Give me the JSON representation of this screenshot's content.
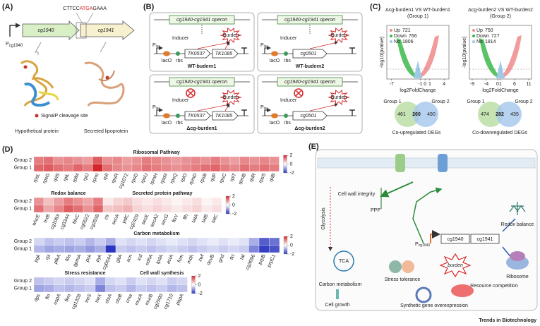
{
  "panel_a": {
    "label": "(A)",
    "sequence": {
      "before": "CTTCC",
      "highlight": "ATGA",
      "after": "GAAA"
    },
    "genes": [
      "cg1940",
      "cg1941"
    ],
    "promoter": {
      "base": "P",
      "sub": "cg1940"
    },
    "legend": "SignalP cleavage site",
    "proteins": [
      "Hypothetical protein",
      "Secreted lipoprotein"
    ]
  },
  "panel_b": {
    "label": "(B)",
    "operon": "cg1940-cg1941 operon",
    "inducer": "Inducer",
    "burden": "Burden",
    "promoter": {
      "base": "P",
      "sub": "tac"
    },
    "lacO": "lacO",
    "rbs": "rbs",
    "strains": [
      {
        "name": "WT-budern1",
        "genes": [
          "TK0537",
          "TK1085"
        ],
        "knockout": false
      },
      {
        "name": "WT-budern2",
        "genes": [
          "cg0501"
        ],
        "knockout": false
      },
      {
        "name": "Δcg-burden1",
        "genes": [
          "TK0537",
          "TK1085"
        ],
        "knockout": true
      },
      {
        "name": "Δcg-burden2",
        "genes": [
          "cg0501"
        ],
        "knockout": true
      }
    ]
  },
  "panel_c": {
    "label": "(C)",
    "x_label": "log2FoldChange",
    "y_label": "-log10(pvalue)",
    "volcanoes": [
      {
        "title": "Δcg-burden1 VS WT-burden1",
        "group": "(Group 1)",
        "xlim": [
          -8,
          5
        ],
        "xticks": [
          -7,
          -1,
          0,
          1,
          4
        ],
        "legend": [
          {
            "name": "Up",
            "count": 721,
            "color": "#f08a8a"
          },
          {
            "name": "Down",
            "count": 766,
            "color": "#3cb94a"
          },
          {
            "name": "No",
            "count": 1806,
            "color": "#9fc9e8"
          }
        ]
      },
      {
        "title": "Δcg-burden2 VS WT-burden2",
        "group": "(Group 2)",
        "xlim": [
          -10,
          12
        ],
        "xticks": [
          -9,
          -4,
          0,
          1,
          6,
          11
        ],
        "legend": [
          {
            "name": "Up",
            "count": 750,
            "color": "#f08a8a"
          },
          {
            "name": "Down",
            "count": 727,
            "color": "#3cb94a"
          },
          {
            "name": "No",
            "count": 1814,
            "color": "#9fc9e8"
          }
        ]
      }
    ],
    "venns": [
      {
        "left": "Group 1",
        "right": "Group 2",
        "values": [
          461,
          260,
          490
        ],
        "caption": "Co-upregulated DEGs",
        "overlap_color": "#d62728"
      },
      {
        "left": "Group 1",
        "right": "Group 2",
        "values": [
          474,
          282,
          435
        ],
        "caption": "Co-downregulated DEGs",
        "overlap_color": "#1f3fbf"
      }
    ]
  },
  "panel_d": {
    "label": "(D)",
    "rows": [
      "Group 2",
      "Group 1"
    ],
    "clim": [
      -2,
      2
    ],
    "colorbar_ticks": [
      2,
      0,
      -2
    ],
    "colormap": [
      "#2a35c0",
      "#ffffff",
      "#d3252a"
    ],
    "blocks": [
      {
        "sections": [
          {
            "title": "Ribosomal Pathway",
            "genes": [
              "rpsL",
              "rpsG",
              "rplS",
              "rplL",
              "rplM",
              "rplJ",
              "rpmI",
              "rplI",
              "rpsR",
              "cg1072",
              "rpsD",
              "rpsU",
              "rpmH",
              "rpsM",
              "rpsQ",
              "rplO",
              "rpmD",
              "rpsB",
              "rplP",
              "rpsC",
              "rplT",
              "rpmB",
              "rplR",
              "rpsS",
              "rplB"
            ],
            "values": [
              [
                1.2,
                1.3,
                1.0,
                1.1,
                1.0,
                0.9,
                1.5,
                1.0,
                1.1,
                0.9,
                1.0,
                1.2,
                1.1,
                1.0,
                0.9,
                1.0,
                1.1,
                1.0,
                1.2,
                1.0,
                0.9,
                1.1,
                1.0,
                1.1,
                1.0
              ],
              [
                1.4,
                1.5,
                1.3,
                1.2,
                1.4,
                1.2,
                2.0,
                1.3,
                1.1,
                1.0,
                1.1,
                1.3,
                1.2,
                1.1,
                1.0,
                1.1,
                1.2,
                1.3,
                1.4,
                1.2,
                1.1,
                1.3,
                1.2,
                1.3,
                1.2
              ]
            ]
          }
        ]
      },
      {
        "sections": [
          {
            "title": "Redox balance",
            "genes": [
              "whcE",
              "trxB",
              "cg1083",
              "cg3344",
              "fdxC",
              "cg0622",
              "cg2838"
            ],
            "values": [
              [
                1.0,
                0.6,
                0.9,
                1.2,
                1.0,
                0.8,
                1.2
              ],
              [
                1.3,
                0.8,
                1.1,
                1.5,
                1.3,
                1.0,
                1.4
              ]
            ]
          },
          {
            "title": "Secreted protein pathway",
            "genes": [
              "ctr",
              "secA",
              "yidC",
              "cg2429",
              "secE",
              "secA2",
              "secG",
              "ftsY",
              "ffh",
              "tatA",
              "tatB",
              "tatC"
            ],
            "values": [
              [
                0.2,
                0.4,
                0.5,
                0.3,
                0.2,
                0.3,
                0.2,
                0.1,
                0.2,
                0.3,
                0.1,
                0.2
              ],
              [
                0.5,
                0.6,
                0.7,
                0.4,
                0.3,
                0.4,
                0.3,
                0.2,
                0.3,
                0.4,
                0.2,
                0.3
              ]
            ]
          }
        ]
      },
      {
        "sections": [
          {
            "title": "Carbon metabolism",
            "genes": [
              "pgk",
              "rpi",
              "pfkA",
              "fda",
              "gpmA",
              "pck",
              "pyk",
              "cg0644",
              "gltA",
              "acn",
              "icd",
              "odhA",
              "lpdA",
              "actA",
              "fum",
              "mdh",
              "zwf",
              "devB",
              "gnd",
              "tkt",
              "tal",
              "cg3096",
              "prpB",
              "prpC1"
            ],
            "values": [
              [
                -0.4,
                -0.6,
                -0.5,
                -0.6,
                -0.5,
                -0.7,
                -0.5,
                -0.8,
                -0.3,
                -0.4,
                -0.3,
                -0.4,
                -0.3,
                -0.2,
                -0.3,
                -0.4,
                -0.3,
                -0.2,
                -0.3,
                -0.2,
                -0.3,
                -0.8,
                -1.6,
                -1.4
              ],
              [
                -0.7,
                -0.9,
                -0.8,
                -0.9,
                -0.8,
                -1.0,
                -0.8,
                -2.0,
                -0.5,
                -0.6,
                -0.5,
                -0.6,
                -0.5,
                -0.4,
                -0.5,
                -0.6,
                -0.5,
                -0.4,
                -0.5,
                -0.4,
                -0.5,
                -1.2,
                -1.9,
                -1.7
              ]
            ]
          }
        ]
      },
      {
        "sections": [
          {
            "title": "Stress resistance",
            "genes": [
              "dps",
              "ftn",
              "uspA",
              "fkm",
              "cg1328",
              "treS",
              "treX",
              "otsA",
              "otsB",
              "cma"
            ],
            "values": [
              [
                -0.6,
                -0.5,
                -0.4,
                -0.5,
                -0.4,
                -0.3,
                -0.8,
                -0.4,
                -0.3,
                -0.5
              ],
              [
                -0.9,
                -0.8,
                -0.6,
                -0.7,
                -0.6,
                -0.5,
                -1.2,
                -0.6,
                -0.5,
                -0.7
              ]
            ]
          },
          {
            "title": "Cell wall synthesis",
            "genes": [
              "murA",
              "murB",
              "cg2500",
              "cg1710",
              "pbpA"
            ],
            "values": [
              [
                -0.3,
                -0.4,
                -0.3,
                -0.5,
                -0.4
              ],
              [
                -0.5,
                -0.6,
                -0.5,
                -0.7,
                -0.6
              ]
            ]
          }
        ]
      }
    ]
  },
  "panel_e": {
    "label": "(E)",
    "cell_wall": "Cell wall integrity",
    "ppp": "PPP",
    "glycolysis": "Glycolysis",
    "tca": "TCA",
    "carbon": "Carbon metabolism",
    "growth": "Cell growth",
    "stress": "Stress tolerance",
    "burden": "burden",
    "resource": "Resource competition",
    "overexpression": "Synthetic gene overexpression",
    "promoter": {
      "base": "P",
      "sub": "cg1940"
    },
    "genes": [
      "cg1940",
      "cg1941"
    ],
    "redox": "Redox balance",
    "ribosome": "Ribosome"
  },
  "footer": "Trends in Biotechnology"
}
